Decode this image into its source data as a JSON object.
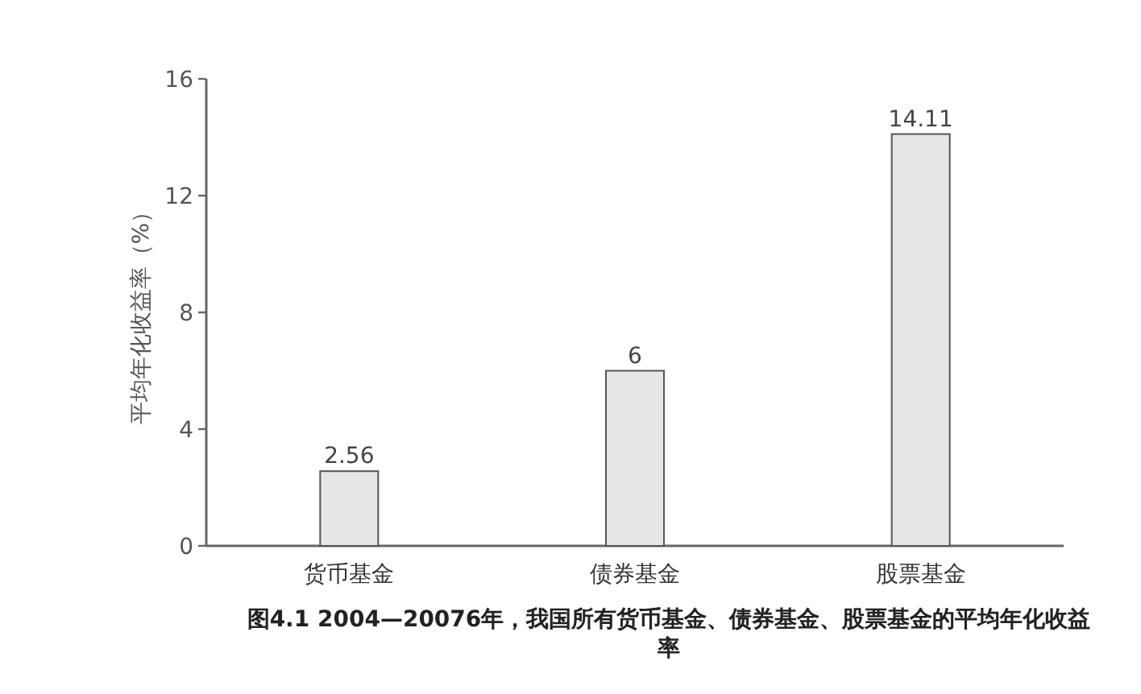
{
  "chart_data": {
    "type": "bar",
    "categories": [
      "货币基金",
      "债券基金",
      "股票基金"
    ],
    "values": [
      2.56,
      6,
      14.11
    ],
    "color": "#e6e6e6",
    "ylabel": "平均年化收益率（%）",
    "ylim": [
      0,
      16
    ],
    "yticks": [
      0,
      4,
      8,
      12,
      16
    ],
    "data_labels": true,
    "annotations": [
      "图4.1 2004—20076年，我国所有货币基金、债券基金、股票基金的平均年化收益率"
    ]
  }
}
